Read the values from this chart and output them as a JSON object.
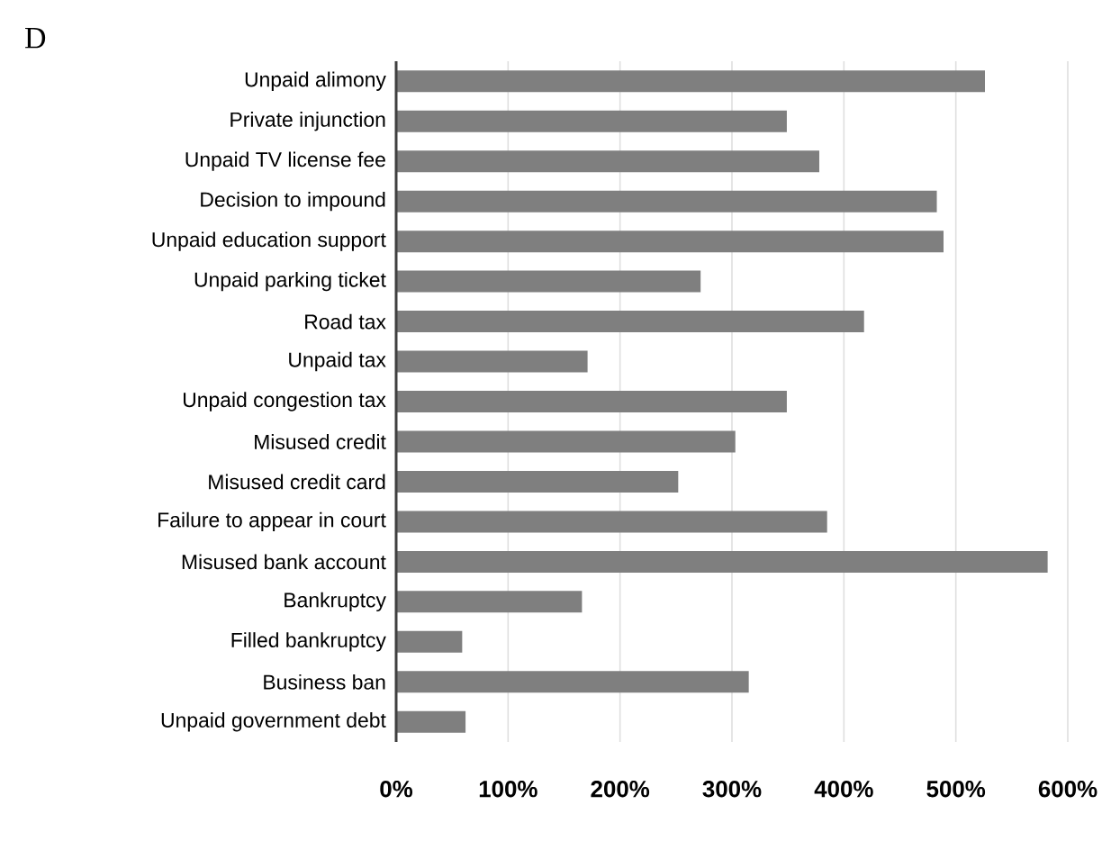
{
  "chart_data": {
    "type": "bar",
    "orientation": "horizontal",
    "categories": [
      "Unpaid alimony",
      "Private injunction",
      "Unpaid TV license fee",
      "Decision to impound",
      "Unpaid education support",
      "Unpaid parking ticket",
      "Road tax",
      "Unpaid tax",
      "Unpaid congestion tax",
      "Misused credit",
      "Misused credit card",
      "Failure to appear in court",
      "Misused bank account",
      "Bankruptcy",
      "Filled bankruptcy",
      "Business ban",
      "Unpaid government debt"
    ],
    "values": [
      526,
      349,
      378,
      483,
      489,
      272,
      418,
      171,
      349,
      303,
      252,
      385,
      582,
      166,
      59,
      315,
      62
    ],
    "color": "#7f7f7f",
    "xlim": [
      0,
      600
    ],
    "xticks": [
      {
        "value": 0,
        "label": "0%"
      },
      {
        "value": 100,
        "label": "100%"
      },
      {
        "value": 200,
        "label": "200%"
      },
      {
        "value": 300,
        "label": "300%"
      },
      {
        "value": 400,
        "label": "400%"
      },
      {
        "value": 500,
        "label": "500%"
      },
      {
        "value": 600,
        "label": "600%"
      }
    ],
    "grid": "x",
    "annotations": [
      "D"
    ]
  }
}
